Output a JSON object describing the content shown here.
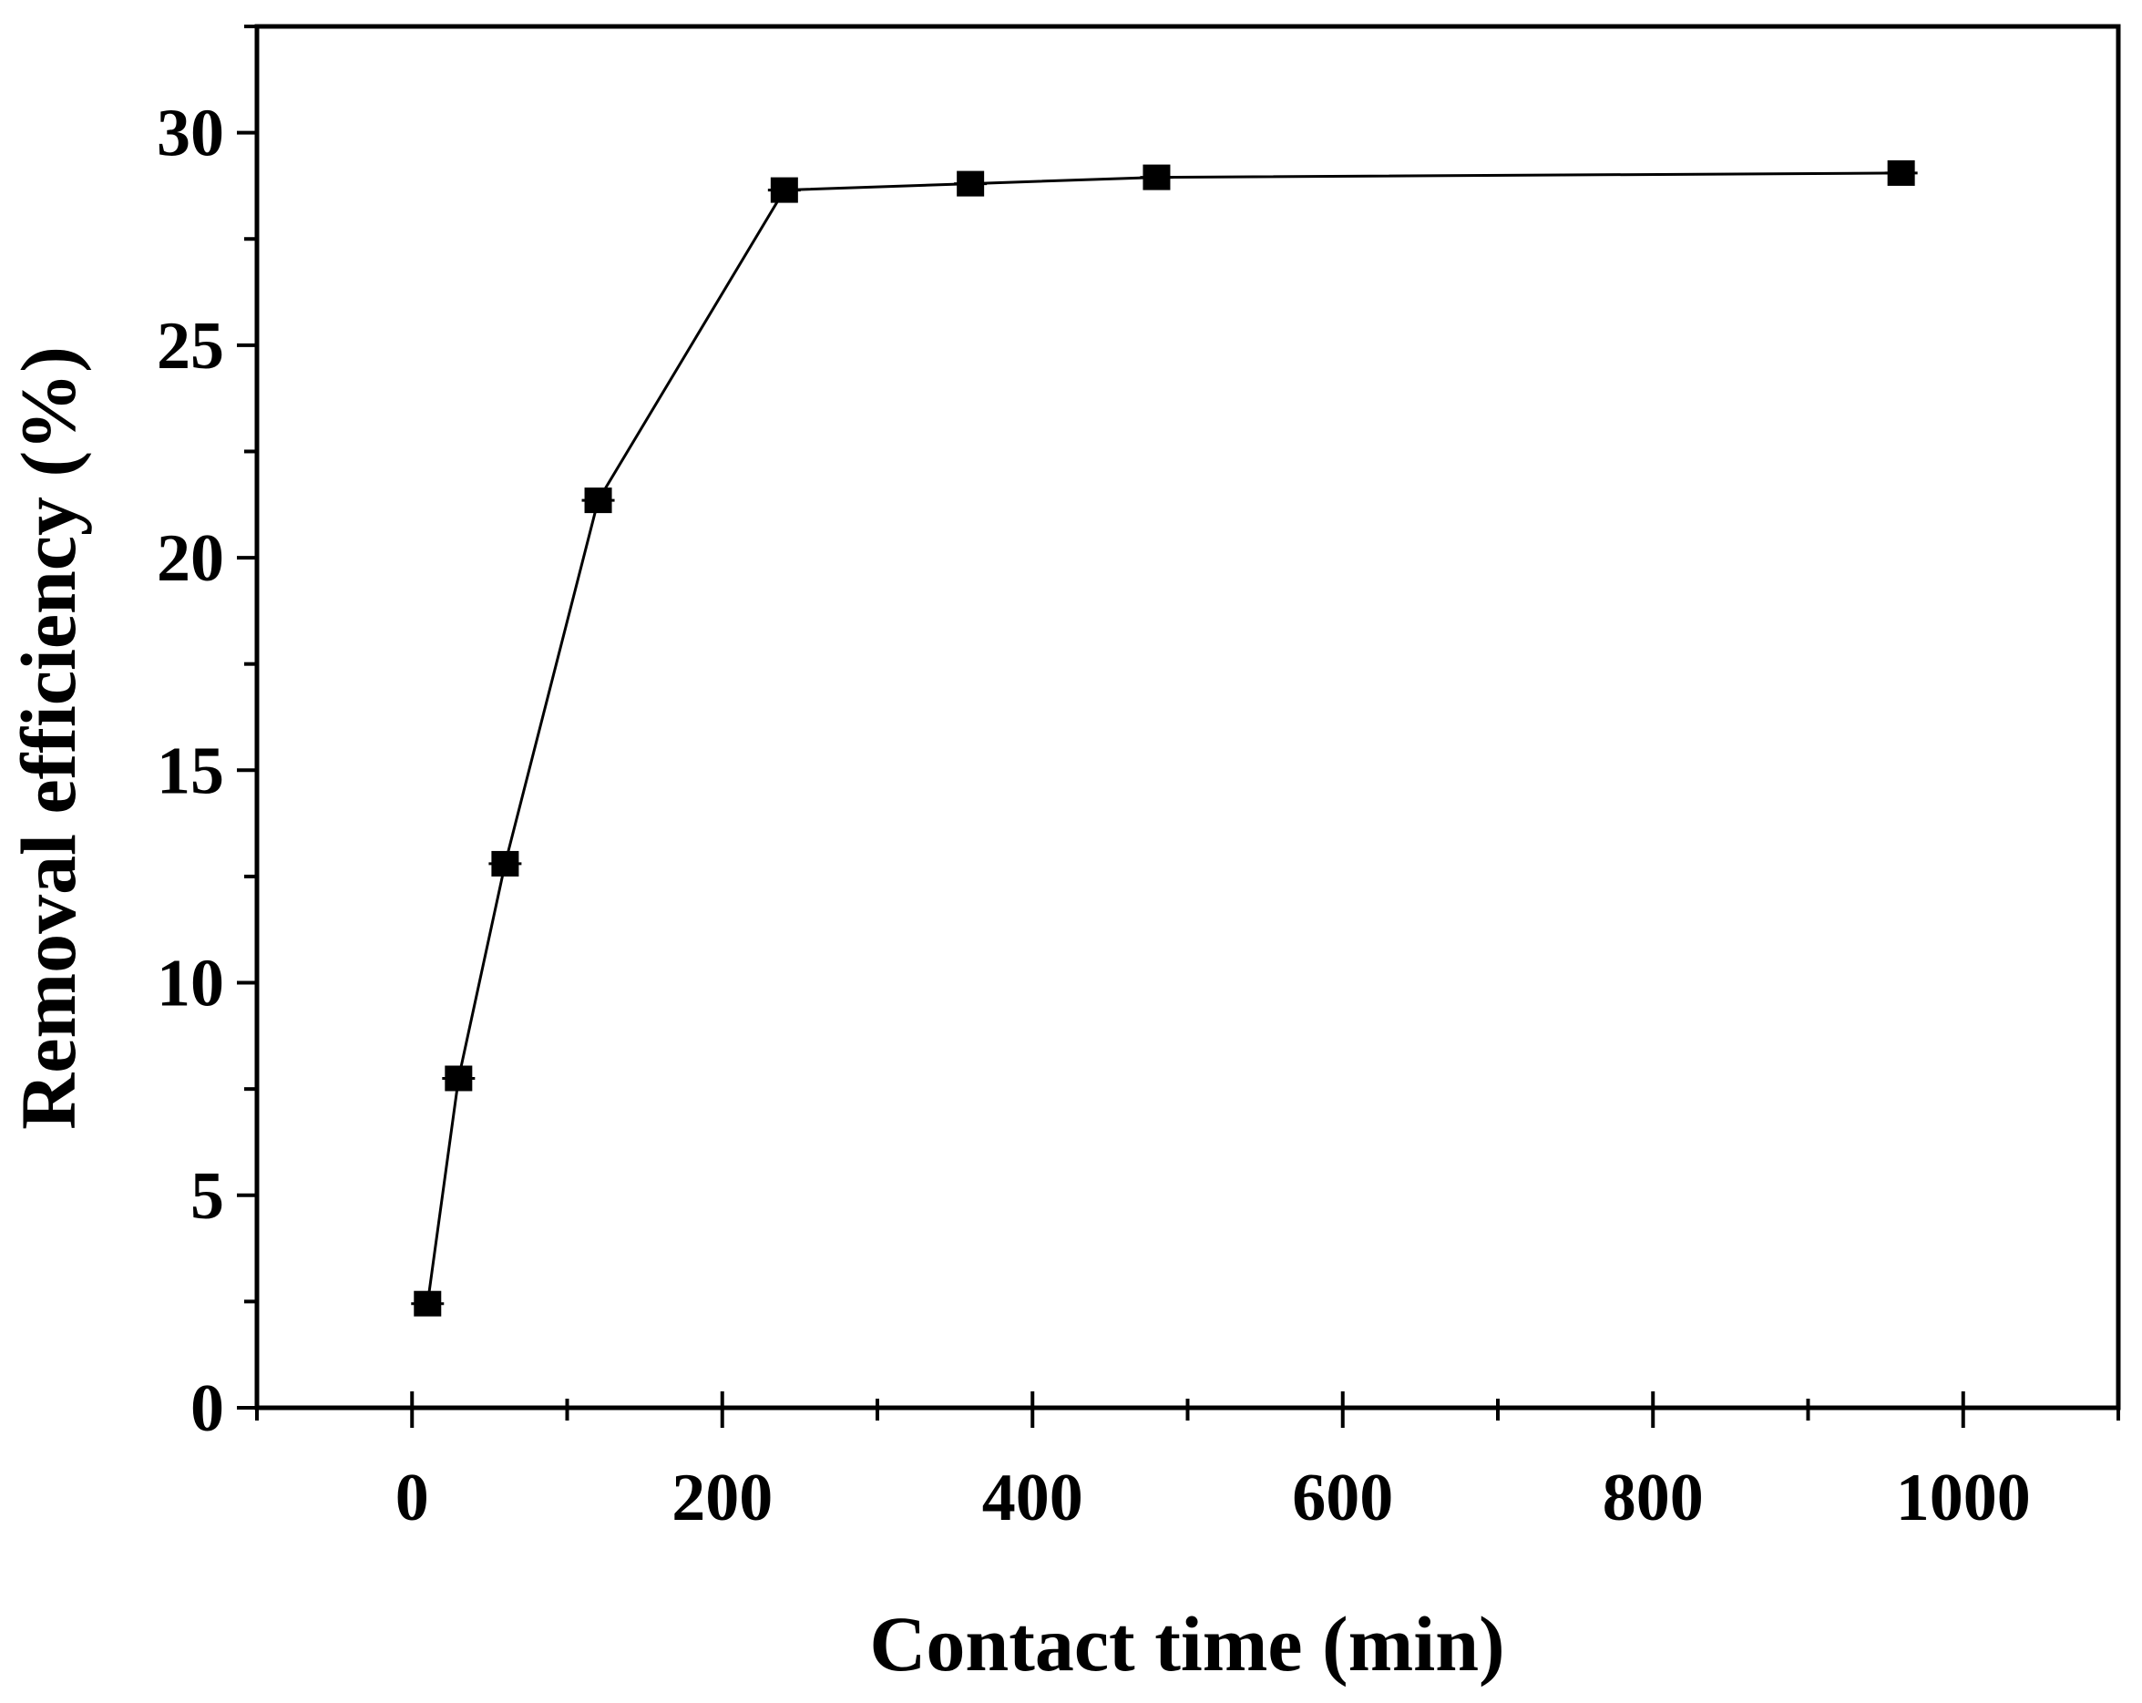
{
  "chart_data": {
    "type": "line",
    "title": "",
    "xlabel": "Contact time (min)",
    "ylabel": "Removal efficiency (%)",
    "xlim": [
      -100,
      1100
    ],
    "ylim": [
      0,
      32.5
    ],
    "x_ticks": [
      0,
      200,
      400,
      600,
      800,
      1000
    ],
    "x_tick_labels": [
      "0",
      "200",
      "400",
      "600",
      "800",
      "1000"
    ],
    "y_ticks": [
      0,
      5,
      10,
      15,
      20,
      25,
      30
    ],
    "y_tick_labels": [
      "0",
      "5",
      "10",
      "15",
      "20",
      "25",
      "30"
    ],
    "x_minor_step": 100,
    "y_minor_step": 2.5,
    "grid": false,
    "legend": "none",
    "marker": "filled-square",
    "line_color": "#000000",
    "x": [
      10,
      30,
      60,
      120,
      240,
      360,
      480,
      960
    ],
    "y": [
      2.45,
      7.75,
      12.8,
      21.35,
      28.65,
      28.8,
      28.95,
      29.05
    ]
  }
}
